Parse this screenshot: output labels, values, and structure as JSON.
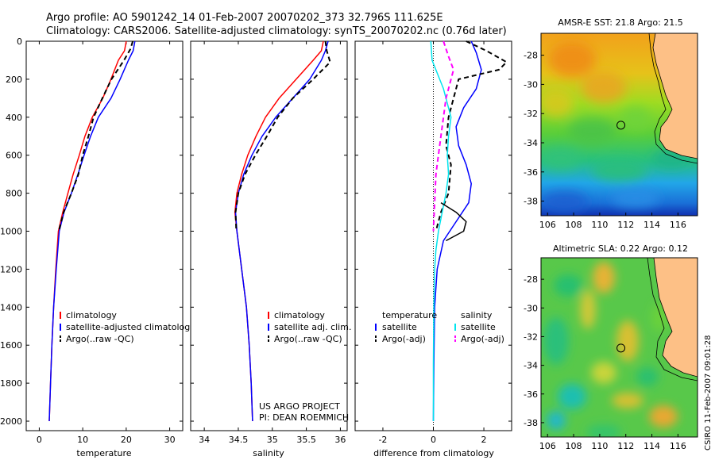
{
  "header": {
    "line1": "Argo profile: AO 5901242_14 01-Feb-2007 20070202_373 32.796S 111.625E",
    "line2": "Climatology: CARS2006. Satellite-adjusted climatology: synTS_20070202.nc (0.76d later)"
  },
  "footer_stamp": "CSIRO 11-Feb-2007 09:01:28",
  "colors": {
    "climatology": "#ff0000",
    "satellite": "#0000ff",
    "argo": "#000000",
    "temp_diff_sat": "#00e5ee",
    "sal_diff_argo": "#ff00ff"
  },
  "chart_data": [
    {
      "type": "line",
      "panel": "temperature",
      "xlabel": "temperature",
      "ylabel": "",
      "xlim": [
        -3,
        33
      ],
      "ylim": [
        2050,
        0
      ],
      "xticks": [
        0,
        10,
        20,
        30
      ],
      "yticks": [
        0,
        200,
        400,
        600,
        800,
        1000,
        1200,
        1400,
        1600,
        1800,
        2000
      ],
      "legend": [
        "climatology",
        "satellite-adjusted climatology",
        "Argo(..raw -QC)"
      ],
      "series": [
        {
          "name": "climatology",
          "style": "solid",
          "color": "#ff0000",
          "x": [
            20.0,
            19.6,
            18.2,
            16.5,
            14.6,
            12.2,
            10.5,
            9.2,
            7.8,
            6.6,
            5.4,
            4.4,
            3.8,
            3.3,
            2.9,
            2.6,
            2.3
          ],
          "y": [
            0,
            50,
            100,
            200,
            300,
            400,
            500,
            600,
            700,
            800,
            900,
            1000,
            1200,
            1400,
            1600,
            1800,
            2000
          ]
        },
        {
          "name": "satellite-adjusted climatology",
          "style": "solid",
          "color": "#0000ff",
          "x": [
            22.0,
            21.6,
            20.5,
            18.6,
            16.5,
            13.6,
            11.8,
            10.3,
            8.9,
            7.4,
            5.7,
            4.6,
            3.9,
            3.3,
            2.9,
            2.6,
            2.3
          ],
          "y": [
            0,
            50,
            100,
            200,
            300,
            400,
            500,
            600,
            700,
            800,
            900,
            1000,
            1200,
            1400,
            1600,
            1800,
            2000
          ]
        },
        {
          "name": "Argo(..raw -QC)",
          "style": "dashed",
          "color": "#000000",
          "x": [
            21.5,
            21.0,
            19.5,
            16.6,
            14.5,
            12.5,
            11.3,
            10.0,
            9.0,
            7.4,
            5.6,
            4.5
          ],
          "y": [
            0,
            40,
            100,
            200,
            300,
            400,
            500,
            600,
            700,
            800,
            900,
            1000
          ]
        }
      ]
    },
    {
      "type": "line",
      "panel": "salinity",
      "xlabel": "salinity",
      "ylabel": "",
      "xlim": [
        33.8,
        36.1
      ],
      "ylim": [
        2050,
        0
      ],
      "xticks": [
        34,
        34.5,
        35,
        35.5,
        36
      ],
      "yticks": [
        0,
        200,
        400,
        600,
        800,
        1000,
        1200,
        1400,
        1600,
        1800,
        2000
      ],
      "legend": [
        "climatology",
        "satellite adj. clim.",
        "Argo(..raw -QC)"
      ],
      "series": [
        {
          "name": "climatology",
          "style": "solid",
          "color": "#ff0000",
          "x": [
            35.75,
            35.72,
            35.6,
            35.35,
            35.1,
            34.9,
            34.76,
            34.64,
            34.55,
            34.48,
            34.45,
            34.48,
            34.55,
            34.62,
            34.66,
            34.69,
            34.71
          ],
          "y": [
            0,
            50,
            100,
            200,
            300,
            400,
            500,
            600,
            700,
            800,
            900,
            1000,
            1200,
            1400,
            1600,
            1800,
            2000
          ]
        },
        {
          "name": "satellite adj. clim.",
          "style": "solid",
          "color": "#0000ff",
          "x": [
            35.82,
            35.78,
            35.72,
            35.55,
            35.3,
            35.05,
            34.85,
            34.7,
            34.58,
            34.5,
            34.46,
            34.48,
            34.55,
            34.62,
            34.66,
            34.69,
            34.71
          ],
          "y": [
            0,
            50,
            100,
            200,
            300,
            400,
            500,
            600,
            700,
            800,
            900,
            1000,
            1200,
            1400,
            1600,
            1800,
            2000
          ]
        },
        {
          "name": "Argo(..raw -QC)",
          "style": "dashed",
          "color": "#000000",
          "x": [
            35.78,
            35.8,
            35.85,
            35.6,
            35.3,
            35.08,
            34.92,
            34.75,
            34.6,
            34.5,
            34.46,
            34.47
          ],
          "y": [
            0,
            50,
            110,
            200,
            300,
            400,
            500,
            600,
            700,
            800,
            900,
            1000
          ]
        }
      ],
      "annotations": [
        "US ARGO PROJECT",
        "PI: DEAN ROEMMICH"
      ]
    },
    {
      "type": "line",
      "panel": "difference from climatology",
      "xlabel": "difference from climatology",
      "ylabel": "",
      "xlim": [
        -3.1,
        3.1
      ],
      "ylim": [
        2050,
        0
      ],
      "xticks": [
        -2,
        0,
        2
      ],
      "yticks": [
        0,
        200,
        400,
        600,
        800,
        1000,
        1200,
        1400,
        1600,
        1800,
        2000
      ],
      "legend_groups": [
        {
          "heading": "temperature",
          "items": [
            "satellite",
            "Argo(-adj)"
          ]
        },
        {
          "heading": "salinity",
          "items": [
            "satellite",
            "Argo(-adj)"
          ]
        }
      ],
      "series": [
        {
          "name": "temperature satellite",
          "style": "solid",
          "color": "#0000ff",
          "x": [
            1.5,
            1.7,
            1.9,
            1.7,
            1.2,
            0.9,
            1.0,
            1.3,
            1.5,
            1.4,
            0.9,
            0.4,
            0.15,
            0.05,
            0.02,
            0.0
          ],
          "y": [
            0,
            60,
            150,
            250,
            350,
            450,
            550,
            650,
            750,
            850,
            950,
            1050,
            1200,
            1400,
            1700,
            2000
          ]
        },
        {
          "name": "temperature Argo(-adj)",
          "style": "dashed",
          "color": "#000000",
          "x": [
            1.3,
            2.1,
            2.9,
            2.6,
            1.0,
            0.8,
            0.6,
            0.5,
            0.7,
            0.6,
            0.3,
            0.1
          ],
          "y": [
            0,
            50,
            110,
            150,
            200,
            300,
            400,
            550,
            650,
            800,
            900,
            1000
          ]
        },
        {
          "name": "salinity satellite",
          "style": "solid",
          "color": "#00e5ee",
          "x": [
            -0.1,
            -0.05,
            0.4,
            0.7,
            0.6,
            0.55,
            0.6,
            0.5,
            0.35,
            0.2,
            0.1,
            0.05,
            0.02,
            0.0,
            0.0
          ],
          "y": [
            0,
            100,
            250,
            400,
            500,
            600,
            700,
            800,
            900,
            1000,
            1100,
            1200,
            1400,
            1700,
            2000
          ]
        },
        {
          "name": "salinity Argo(-adj)",
          "style": "dashed",
          "color": "#ff00ff",
          "x": [
            0.4,
            0.6,
            0.8,
            0.5,
            0.3,
            0.1,
            0.05,
            0.0
          ],
          "y": [
            0,
            80,
            150,
            300,
            500,
            700,
            850,
            1000
          ]
        },
        {
          "name": "argo temperature low",
          "style": "solid",
          "color": "#000000",
          "x": [
            0.3,
            0.9,
            1.3,
            1.2,
            0.5
          ],
          "y": [
            850,
            900,
            950,
            1000,
            1050
          ]
        }
      ]
    },
    {
      "type": "heatmap",
      "panel": "sst-map",
      "title": "AMSR-E SST: 21.8 Argo: 21.5",
      "xlim": [
        105.5,
        117.5
      ],
      "ylim": [
        -39,
        -26.5
      ],
      "xticks": [
        106,
        108,
        110,
        112,
        114,
        116
      ],
      "yticks": [
        -28,
        -30,
        -32,
        -34,
        -36,
        -38
      ],
      "marker": {
        "lon": 111.625,
        "lat": -32.796
      }
    },
    {
      "type": "heatmap",
      "panel": "sla-map",
      "title": "Altimetric SLA: 0.22 Argo: 0.12",
      "xlim": [
        105.5,
        117.5
      ],
      "ylim": [
        -39,
        -26.5
      ],
      "xticks": [
        106,
        108,
        110,
        112,
        114,
        116
      ],
      "yticks": [
        -28,
        -30,
        -32,
        -34,
        -36,
        -38
      ],
      "marker": {
        "lon": 111.625,
        "lat": -32.796
      }
    }
  ]
}
